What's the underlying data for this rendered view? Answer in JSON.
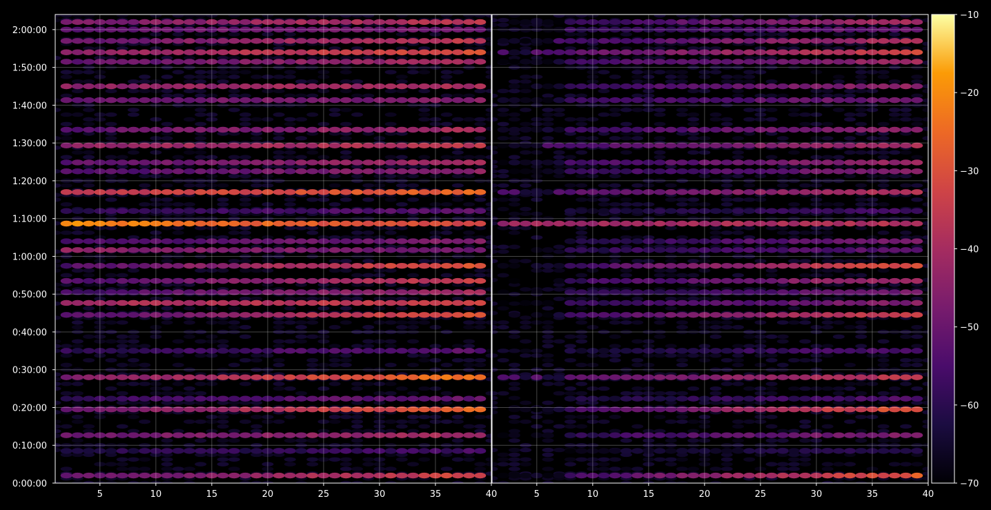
{
  "chart_data": {
    "type": "heatmap",
    "background": "#000000",
    "foreground": "#ffffff",
    "grid": true,
    "colormap": "inferno",
    "panels": [
      {
        "xlim": [
          1,
          40
        ],
        "xticks": [
          "5",
          "10",
          "15",
          "20",
          "25",
          "30",
          "35",
          "40"
        ],
        "xtick_values": [
          5,
          10,
          15,
          20,
          25,
          30,
          35,
          40
        ]
      },
      {
        "xlim": [
          1,
          40
        ],
        "xticks": [
          "5",
          "10",
          "15",
          "20",
          "25",
          "30",
          "35",
          "40"
        ],
        "xtick_values": [
          5,
          10,
          15,
          20,
          25,
          30,
          35,
          40
        ]
      }
    ],
    "ylim_seconds": [
      0,
      7440
    ],
    "yticks": [
      "0:00:00",
      "0:10:00",
      "0:20:00",
      "0:30:00",
      "0:40:00",
      "0:50:00",
      "1:00:00",
      "1:10:00",
      "1:20:00",
      "1:30:00",
      "1:40:00",
      "1:50:00",
      "2:00:00"
    ],
    "ytick_values": [
      0,
      600,
      1200,
      1800,
      2400,
      3000,
      3600,
      4200,
      4800,
      5400,
      6000,
      6600,
      7200
    ],
    "colorbar": {
      "range": [
        -70,
        -10
      ],
      "ticks": [
        "−70",
        "−60",
        "−50",
        "−40",
        "−30",
        "−20",
        "−10"
      ],
      "tick_values": [
        -70,
        -60,
        -50,
        -40,
        -30,
        -20,
        -10
      ]
    },
    "intensity_bands": [
      {
        "time": "0:02:00",
        "left": [
          -52,
          -32
        ],
        "right": [
          -62,
          -28
        ]
      },
      {
        "time": "0:08:30",
        "left": [
          -62,
          -56
        ],
        "right": [
          -68,
          -60
        ]
      },
      {
        "time": "0:12:40",
        "left": [
          -50,
          -40
        ],
        "right": [
          -62,
          -45
        ]
      },
      {
        "time": "0:19:30",
        "left": [
          -50,
          -26
        ],
        "right": [
          -62,
          -28
        ]
      },
      {
        "time": "0:22:20",
        "left": [
          -58,
          -50
        ],
        "right": [
          -66,
          -54
        ]
      },
      {
        "time": "0:28:00",
        "left": [
          -48,
          -22
        ],
        "right": [
          -56,
          -36
        ]
      },
      {
        "time": "0:35:00",
        "left": [
          -60,
          -52
        ],
        "right": [
          -66,
          -54
        ]
      },
      {
        "time": "0:44:30",
        "left": [
          -54,
          -28
        ],
        "right": [
          -62,
          -32
        ]
      },
      {
        "time": "0:47:40",
        "left": [
          -40,
          -34
        ],
        "right": [
          -62,
          -46
        ]
      },
      {
        "time": "0:50:30",
        "left": [
          -56,
          -40
        ],
        "right": [
          -64,
          -48
        ]
      },
      {
        "time": "0:53:30",
        "left": [
          -54,
          -34
        ],
        "right": [
          -62,
          -40
        ]
      },
      {
        "time": "0:57:30",
        "left": [
          -54,
          -28
        ],
        "right": [
          -62,
          -30
        ]
      },
      {
        "time": "1:01:40",
        "left": [
          -44,
          -50
        ],
        "right": [
          -62,
          -52
        ]
      },
      {
        "time": "1:04:00",
        "left": [
          -56,
          -46
        ],
        "right": [
          -66,
          -46
        ]
      },
      {
        "time": "1:08:40",
        "left": [
          -20,
          -34
        ],
        "right": [
          -42,
          -38
        ]
      },
      {
        "time": "1:12:00",
        "left": [
          -60,
          -52
        ],
        "right": [
          -66,
          -56
        ]
      },
      {
        "time": "1:17:00",
        "left": [
          -36,
          -26
        ],
        "right": [
          -56,
          -38
        ]
      },
      {
        "time": "1:22:30",
        "left": [
          -54,
          -44
        ],
        "right": [
          -62,
          -46
        ]
      },
      {
        "time": "1:24:50",
        "left": [
          -52,
          -40
        ],
        "right": [
          -60,
          -42
        ]
      },
      {
        "time": "1:29:20",
        "left": [
          -44,
          -36
        ],
        "right": [
          -58,
          -40
        ]
      },
      {
        "time": "1:33:30",
        "left": [
          -52,
          -40
        ],
        "right": [
          -60,
          -44
        ]
      },
      {
        "time": "1:41:20",
        "left": [
          -50,
          -46
        ],
        "right": [
          -60,
          -48
        ]
      },
      {
        "time": "1:45:00",
        "left": [
          -44,
          -40
        ],
        "right": [
          -60,
          -44
        ]
      },
      {
        "time": "1:51:30",
        "left": [
          -52,
          -40
        ],
        "right": [
          -60,
          -42
        ]
      },
      {
        "time": "1:54:00",
        "left": [
          -44,
          -30
        ],
        "right": [
          -56,
          -32
        ]
      },
      {
        "time": "1:57:00",
        "left": [
          -50,
          -36
        ],
        "right": [
          -60,
          -38
        ]
      },
      {
        "time": "2:00:00",
        "left": [
          -52,
          -48
        ],
        "right": [
          -62,
          -50
        ]
      },
      {
        "time": "2:02:00",
        "left": [
          -48,
          -36
        ],
        "right": [
          -62,
          -40
        ]
      }
    ]
  }
}
